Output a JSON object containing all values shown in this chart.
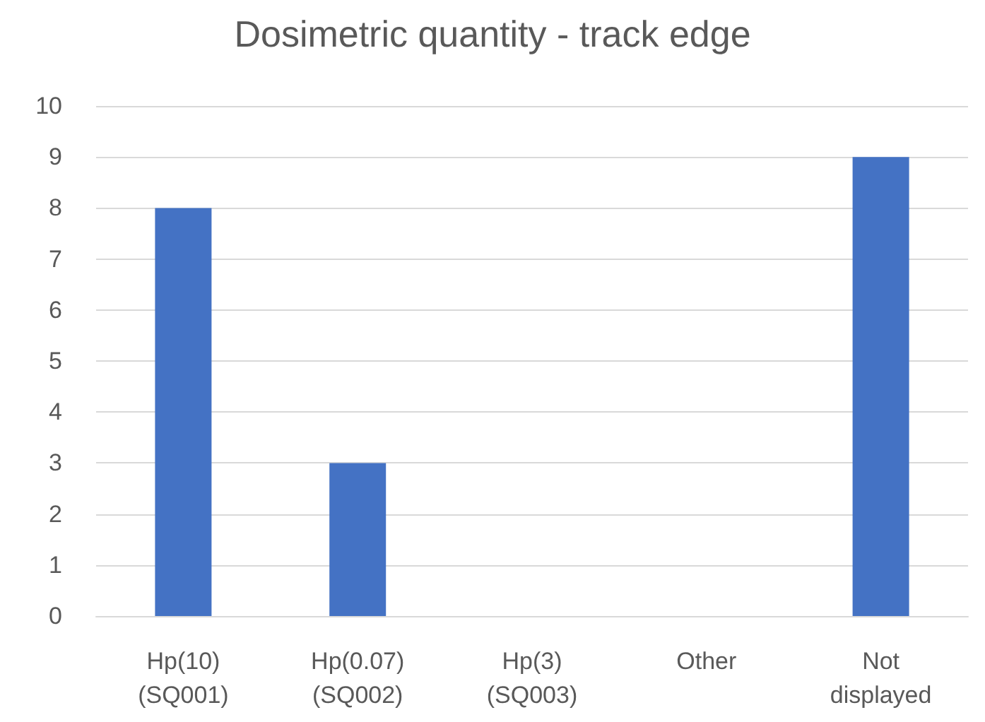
{
  "chart_data": {
    "type": "bar",
    "title": "Dosimetric quantity - track edge",
    "categories": [
      "Hp(10)\n(SQ001)",
      "Hp(0.07)\n(SQ002)",
      "Hp(3)\n(SQ003)",
      "Other",
      "Not\ndisplayed"
    ],
    "values": [
      8,
      3,
      0,
      0,
      9
    ],
    "color": "#4472c4",
    "ylim": [
      0,
      10
    ],
    "yticks": [
      0,
      1,
      2,
      3,
      4,
      5,
      6,
      7,
      8,
      9,
      10
    ],
    "grid": "y"
  }
}
